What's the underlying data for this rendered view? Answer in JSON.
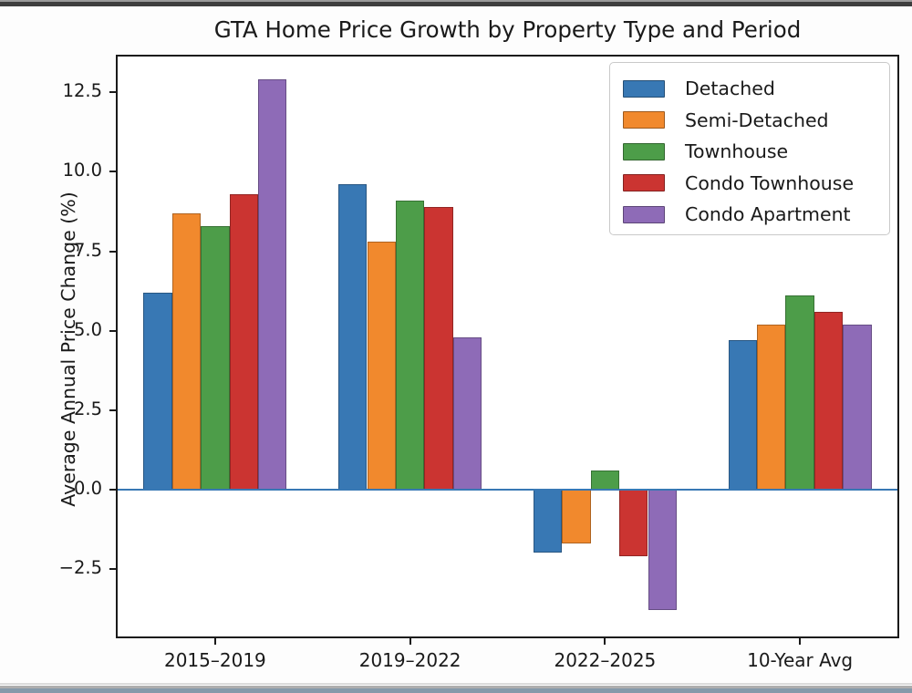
{
  "window": {
    "top_strip_color": "#3e3e3e",
    "bottom_strip_color": "#8599aa",
    "background": "#ffffff"
  },
  "chart_data": {
    "type": "bar",
    "title": "GTA Home Price Growth by Property Type and Period",
    "xlabel": "",
    "ylabel": "Average Annual Price Change (%)",
    "categories": [
      "2015–2019",
      "2019–2022",
      "2022–2025",
      "10-Year Avg"
    ],
    "series": [
      {
        "name": "Detached",
        "color": "#3878b4",
        "values": [
          6.2,
          9.6,
          -2.0,
          4.7
        ]
      },
      {
        "name": "Semi-Detached",
        "color": "#f1892d",
        "values": [
          8.7,
          7.8,
          -1.7,
          5.2
        ]
      },
      {
        "name": "Townhouse",
        "color": "#4d9d49",
        "values": [
          8.3,
          9.1,
          0.6,
          6.1
        ]
      },
      {
        "name": "Condo Townhouse",
        "color": "#cb3431",
        "values": [
          9.3,
          8.9,
          -2.1,
          5.6
        ]
      },
      {
        "name": "Condo Apartment",
        "color": "#8e6bb7",
        "values": [
          12.9,
          4.8,
          -3.8,
          5.2
        ]
      }
    ],
    "yticks": [
      12.5,
      10.0,
      7.5,
      5.0,
      2.5,
      0.0,
      -2.5
    ],
    "ytick_labels": [
      "12.5",
      "10.0",
      "7.5",
      "5.0",
      "2.5",
      "0.0",
      "−2.5"
    ],
    "ylim": [
      -4.63,
      13.63
    ],
    "grid": false,
    "legend_position": "upper right",
    "zero_line_color": "#3878b4",
    "axis_color": "#1a1a1a"
  }
}
